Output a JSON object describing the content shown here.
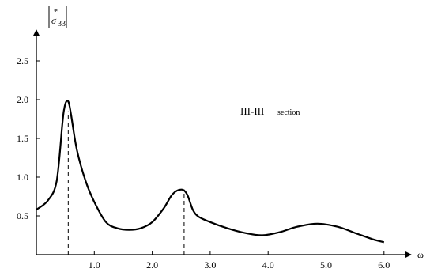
{
  "chart_data": {
    "type": "line",
    "title": "",
    "xlabel": "ω",
    "ylabel": {
      "symbol": "σ",
      "superscript": "*",
      "subscript": "33",
      "bars": "| |"
    },
    "annotation": {
      "main": "III-III",
      "small": "section"
    },
    "xlim": [
      0,
      6.45
    ],
    "ylim": [
      0,
      2.85
    ],
    "x_ticks": [
      1.0,
      2.0,
      3.0,
      4.0,
      5.0,
      6.0
    ],
    "x_tick_labels": [
      "1.0",
      "2.0",
      "3.0",
      "4.0",
      "5.0",
      "6.0"
    ],
    "y_ticks": [
      0.5,
      1.0,
      1.5,
      2.0,
      2.5
    ],
    "y_tick_labels": [
      "0.5",
      "1.0",
      "1.5",
      "2.0",
      "2.5"
    ],
    "grid": false,
    "series": [
      {
        "x": [
          0.0,
          0.2,
          0.35,
          0.45,
          0.48,
          0.52,
          0.56,
          0.6,
          0.7,
          0.85,
          1.0,
          1.2,
          1.4,
          1.6,
          1.8,
          2.0,
          2.2,
          2.35,
          2.5,
          2.6,
          2.7,
          2.8,
          3.0,
          3.3,
          3.6,
          3.9,
          4.2,
          4.5,
          4.85,
          5.2,
          5.5,
          5.8,
          6.0
        ],
        "y": [
          0.58,
          0.7,
          0.95,
          1.7,
          1.88,
          1.98,
          1.96,
          1.8,
          1.35,
          0.95,
          0.68,
          0.42,
          0.34,
          0.32,
          0.34,
          0.42,
          0.6,
          0.78,
          0.84,
          0.78,
          0.58,
          0.49,
          0.42,
          0.34,
          0.28,
          0.25,
          0.29,
          0.36,
          0.4,
          0.36,
          0.28,
          0.2,
          0.16
        ]
      }
    ],
    "vlines": [
      {
        "x": 0.55,
        "y": 1.85,
        "style": "dashed"
      },
      {
        "x": 2.55,
        "y": 0.84,
        "style": "dashed"
      }
    ]
  }
}
